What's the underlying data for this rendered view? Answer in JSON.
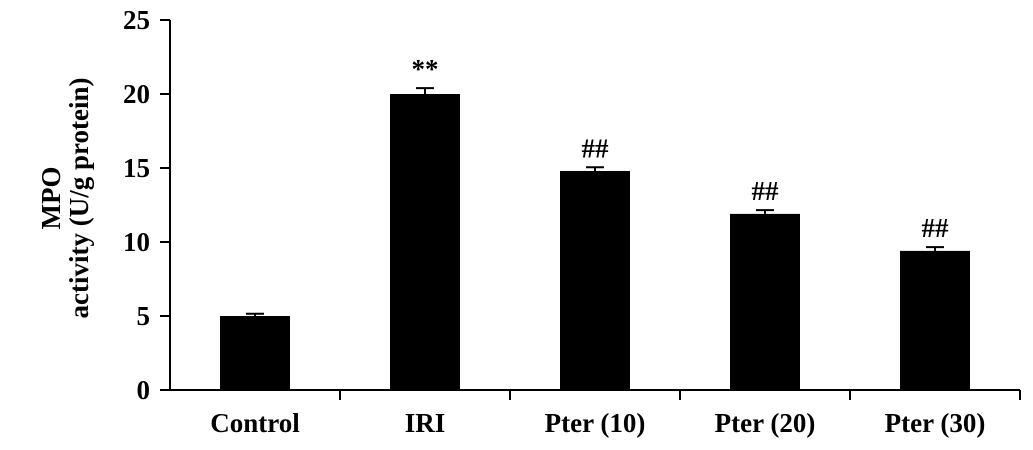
{
  "chart_data": {
    "type": "bar",
    "ylabel_lines": [
      "MPO",
      "activity (U/g protein)"
    ],
    "xlabel": "",
    "categories": [
      "Control",
      "IRI",
      "Pter (10)",
      "Pter (20)",
      "Pter (30)"
    ],
    "values": [
      5.0,
      20.0,
      14.8,
      11.9,
      9.4
    ],
    "errors": [
      0.15,
      0.4,
      0.25,
      0.25,
      0.25
    ],
    "annotations": [
      "",
      "**",
      "##",
      "##",
      "##"
    ],
    "ylim": [
      0,
      25
    ],
    "yticks": [
      0,
      5,
      10,
      15,
      20,
      25
    ],
    "grid": false,
    "colors": {
      "bar": "#000000",
      "axis": "#000000",
      "background": "#ffffff"
    }
  }
}
